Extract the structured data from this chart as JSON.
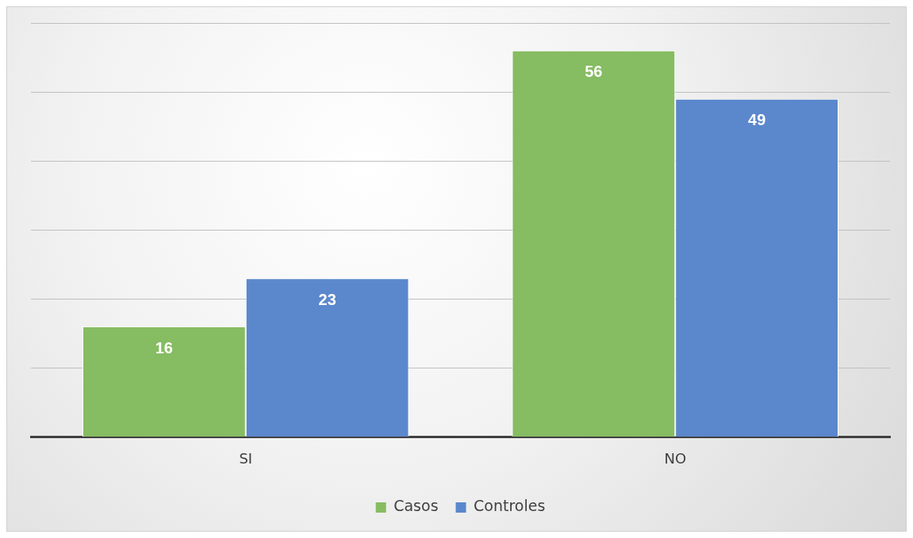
{
  "chart_data": {
    "type": "bar",
    "categories": [
      "SI",
      "NO"
    ],
    "series": [
      {
        "name": "Casos",
        "color": "#86bc62",
        "values": [
          16,
          56
        ]
      },
      {
        "name": "Controles",
        "color": "#5b87cc",
        "values": [
          23,
          49
        ]
      }
    ],
    "ylim": [
      0,
      60
    ],
    "yticks": [
      {
        "value": 0,
        "label": null
      },
      {
        "value": 10,
        "label": null
      },
      {
        "value": 20,
        "label": null
      },
      {
        "value": 30,
        "label": null
      },
      {
        "value": 40,
        "label": null
      },
      {
        "value": 50,
        "label": null
      },
      {
        "value": 60,
        "label": null
      }
    ],
    "tick_labels": "x",
    "grid": "y",
    "legend": "bottom",
    "data_labels": true
  }
}
